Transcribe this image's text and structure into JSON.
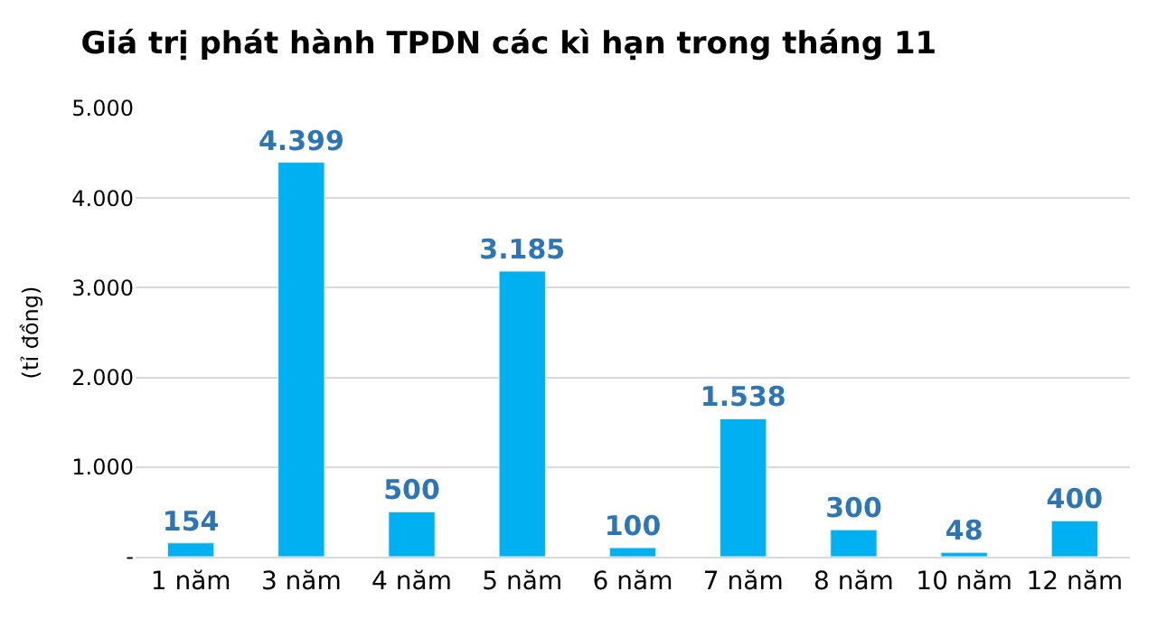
{
  "chart_data": {
    "type": "bar",
    "title": "Giá trị phát hành TPDN các kì hạn trong tháng 11",
    "ylabel": "(tỉ đồng)",
    "categories": [
      "1 năm",
      "3 năm",
      "4 năm",
      "5 năm",
      "6 năm",
      "7 năm",
      "8 năm",
      "10 năm",
      "12 năm"
    ],
    "values": [
      154,
      4399,
      500,
      3185,
      100,
      1538,
      300,
      48,
      400
    ],
    "value_labels": [
      "154",
      "4.399",
      "500",
      "3.185",
      "100",
      "1.538",
      "300",
      "48",
      "400"
    ],
    "color": "#00b0f0",
    "ylim": [
      0,
      5000
    ],
    "yticks": [
      {
        "value": 0,
        "label": "-"
      },
      {
        "value": 1000,
        "label": "1.000"
      },
      {
        "value": 2000,
        "label": "2.000"
      },
      {
        "value": 3000,
        "label": "3.000"
      },
      {
        "value": 4000,
        "label": "4.000"
      },
      {
        "value": 5000,
        "label": "5.000"
      }
    ],
    "grid": "y"
  }
}
